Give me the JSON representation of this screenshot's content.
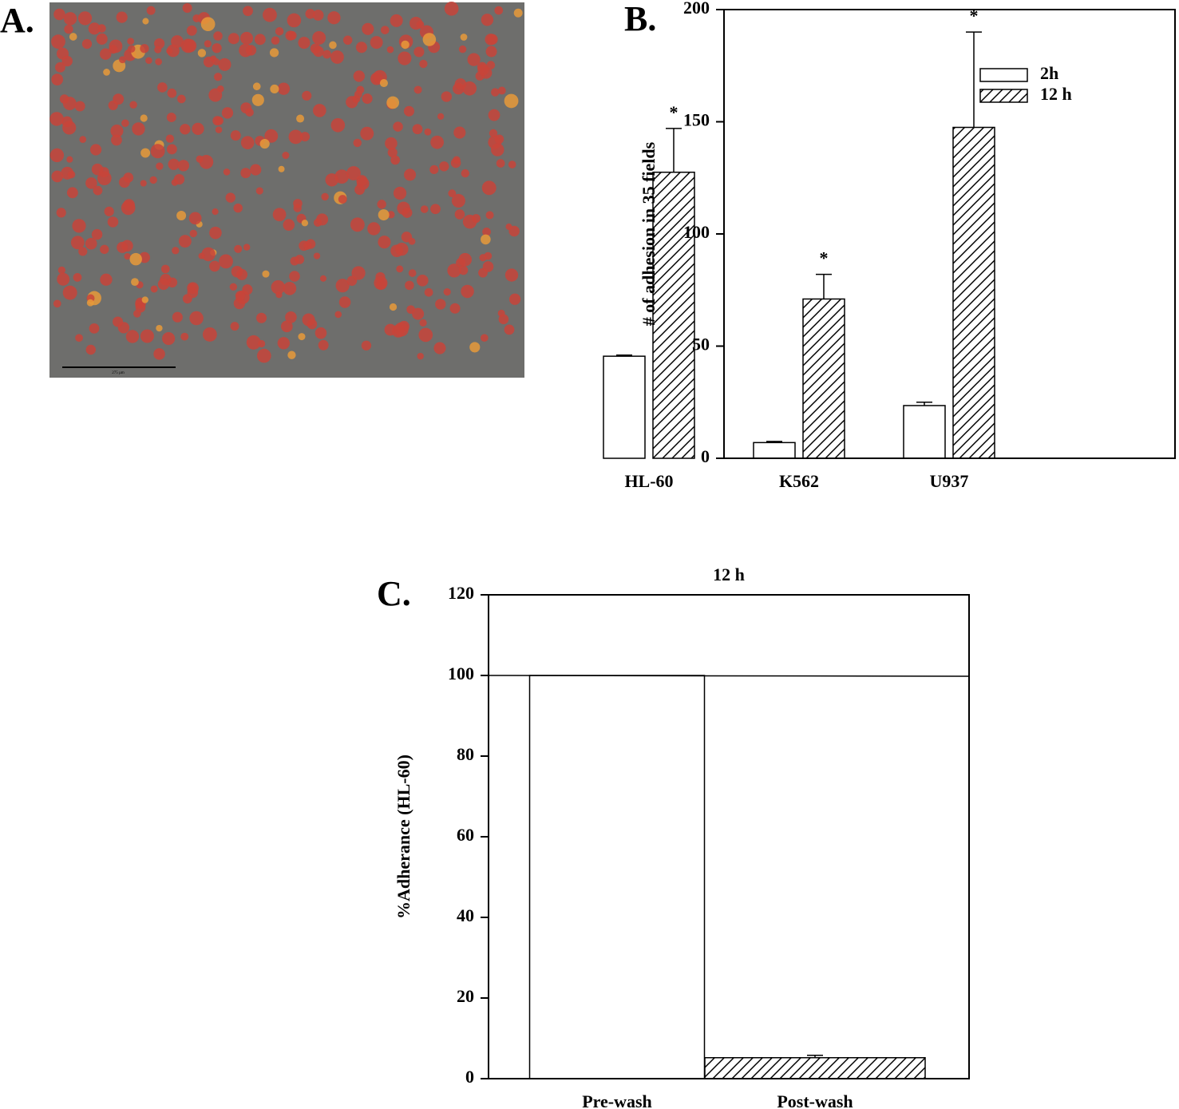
{
  "panel_a": {
    "label": "A.",
    "scale_label": "275 µm"
  },
  "chart_data": [
    {
      "type": "bar",
      "panel_label": "B.",
      "ylabel": "# of adhesion in 35 fields",
      "categories": [
        "HL-60",
        "K562",
        "U937"
      ],
      "series": [
        {
          "name": "2h",
          "color": "#ffffff",
          "hatch": false,
          "values": [
            45.5,
            7,
            23.5
          ],
          "errors": [
            0.5,
            0.5,
            1.5
          ]
        },
        {
          "name": "12 h",
          "color": "#ffffff",
          "hatch": true,
          "values": [
            127.5,
            71,
            147.5
          ],
          "errors": [
            19.5,
            11,
            42.5
          ],
          "markers": [
            "*",
            "*",
            "*"
          ]
        }
      ],
      "ylim": [
        0,
        200
      ],
      "yticks": [
        0,
        50,
        100,
        150,
        200
      ],
      "legend": "upper right"
    },
    {
      "type": "bar",
      "panel_label": "C.",
      "title": "12 h",
      "ylabel": "%Adherance (HL-60)",
      "categories": [
        "Pre-wash",
        "Post-wash"
      ],
      "series": [
        {
          "color": "#ffffff",
          "hatches": [
            false,
            true
          ],
          "values": [
            100,
            5.2
          ],
          "errors": [
            null,
            0.6
          ]
        }
      ],
      "reference_line": 100,
      "ylim": [
        0,
        120
      ],
      "yticks": [
        0,
        20,
        40,
        60,
        80,
        100,
        120
      ]
    }
  ]
}
